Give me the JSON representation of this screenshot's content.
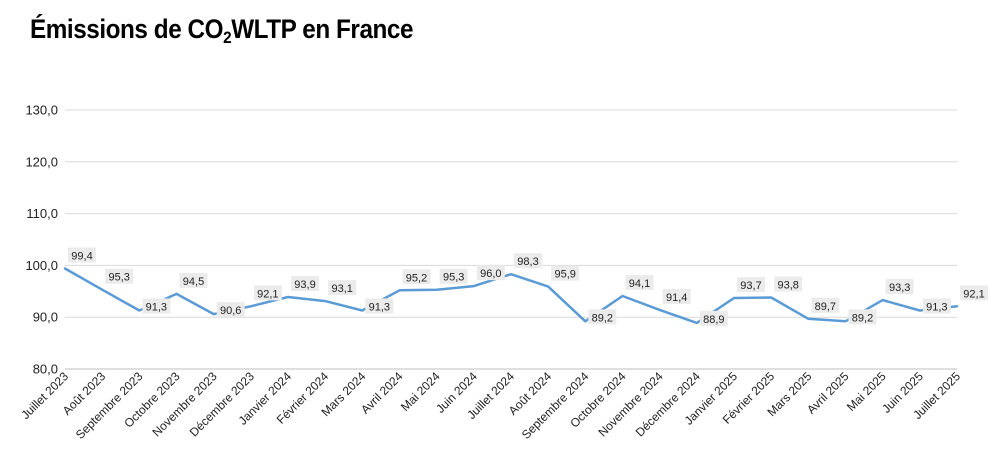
{
  "chart_data": {
    "type": "line",
    "title_main": "Émissions de CO",
    "title_sub": "2",
    "title_rest": "WLTP en France",
    "categories": [
      "Juillet 2023",
      "Août 2023",
      "Septembre 2023",
      "Octobre 2023",
      "Novembre 2023",
      "Décembre 2023",
      "Janvier 2024",
      "Février 2024",
      "Mars 2024",
      "Avril 2024",
      "Mai 2024",
      "Juin 2024",
      "Juillet 2024",
      "Août 2024",
      "Septembre 2024",
      "Octobre 2024",
      "Novembre 2024",
      "Décembre 2024",
      "Janvier 2025",
      "Février 2025",
      "Mars 2025",
      "Avril 2025",
      "Mai 2025",
      "Juin 2025",
      "Juillet 2025"
    ],
    "values": [
      99.4,
      95.3,
      91.3,
      94.5,
      90.6,
      92.1,
      93.9,
      93.1,
      91.3,
      95.2,
      95.3,
      96.0,
      98.3,
      95.9,
      89.2,
      94.1,
      91.4,
      88.9,
      93.7,
      93.8,
      89.7,
      89.2,
      93.3,
      91.3,
      92.1
    ],
    "value_labels": [
      "99,4",
      "95,3",
      "91,3",
      "94,5",
      "90,6",
      "92,1",
      "93,9",
      "93,1",
      "91,3",
      "95,2",
      "95,3",
      "96,0",
      "98,3",
      "95,9",
      "89,2",
      "94,1",
      "91,4",
      "88,9",
      "93,7",
      "93,8",
      "89,7",
      "89,2",
      "93,3",
      "91,3",
      "92,1"
    ],
    "ylim": [
      80,
      130
    ],
    "yticks": [
      80,
      90,
      100,
      110,
      120,
      130
    ],
    "ytick_labels": [
      "80,0",
      "90,0",
      "100,0",
      "110,0",
      "120,0",
      "130,0"
    ],
    "xlabel": "",
    "ylabel": "",
    "grid": true,
    "legend": "none",
    "line_color": "#5b9bd5",
    "grid_color": "#d9d9d9"
  }
}
